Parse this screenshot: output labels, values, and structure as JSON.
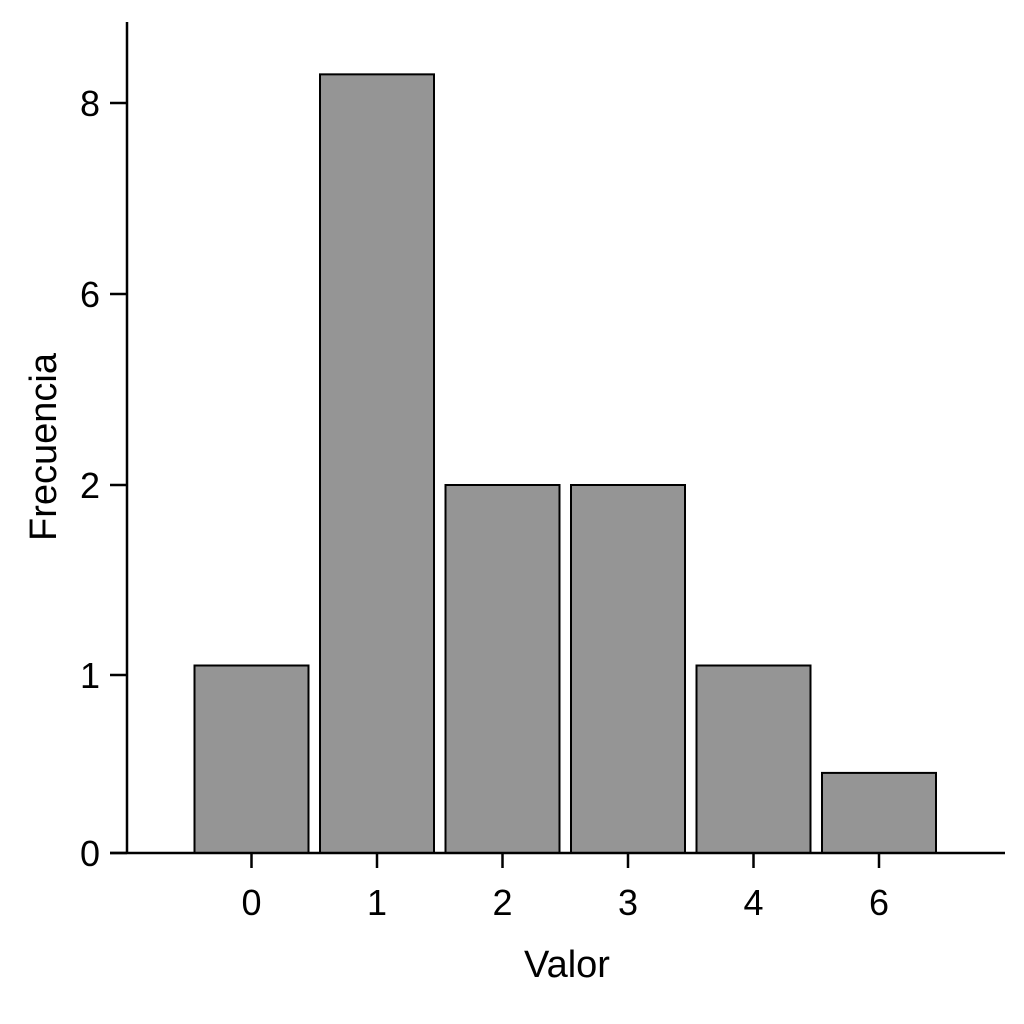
{
  "chart_data": {
    "type": "bar",
    "categories": [
      "0",
      "1",
      "2",
      "3",
      "4",
      "6"
    ],
    "values": [
      1.05,
      8.3,
      2.0,
      2.0,
      1.05,
      0.45
    ],
    "xlabel": "Valor",
    "ylabel": "Frecuencia",
    "yticks": [
      {
        "label": "0",
        "value": 0
      },
      {
        "label": "1",
        "value": 1
      },
      {
        "label": "2",
        "value": 2
      },
      {
        "label": "6",
        "value": 6
      },
      {
        "label": "8",
        "value": 8
      }
    ],
    "grid": false,
    "colors": {
      "bar_fill": "#959595",
      "bar_stroke": "#000000",
      "axis": "#000000"
    }
  }
}
